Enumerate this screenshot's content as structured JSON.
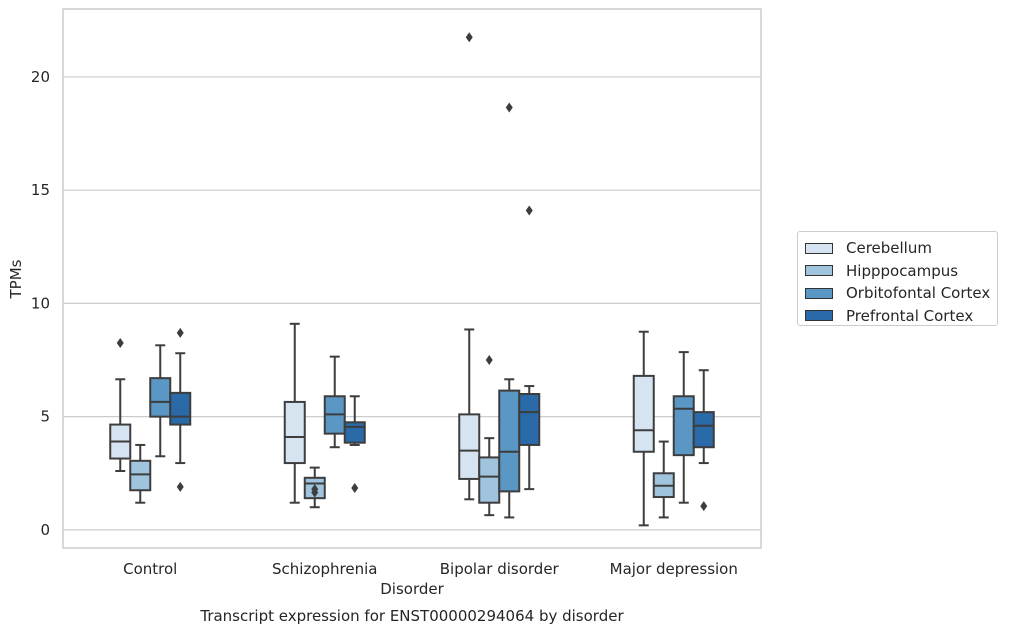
{
  "chart_data": {
    "type": "boxplot",
    "xlabel": "Disorder",
    "ylabel": "TPMs",
    "caption": "Transcript expression for ENST00000294064 by disorder",
    "categories": [
      "Control",
      "Schizophrenia",
      "Bipolar disorder",
      "Major depression"
    ],
    "ylim": [
      -0.8,
      23
    ],
    "yticks": [
      0,
      5,
      10,
      15,
      20
    ],
    "grid": "horizontal",
    "legend_position": "right",
    "series": [
      {
        "name": "Cerebellum",
        "color": "#d6e4f2",
        "boxes": [
          {
            "whislo": 2.6,
            "q1": 3.15,
            "med": 3.9,
            "q3": 4.65,
            "whishi": 6.65,
            "fliers": [
              8.25
            ]
          },
          {
            "whislo": 1.2,
            "q1": 2.95,
            "med": 4.1,
            "q3": 5.65,
            "whishi": 9.1,
            "fliers": []
          },
          {
            "whislo": 1.35,
            "q1": 2.25,
            "med": 3.5,
            "q3": 5.1,
            "whishi": 8.85,
            "fliers": [
              21.75
            ]
          },
          {
            "whislo": 0.2,
            "q1": 3.45,
            "med": 4.4,
            "q3": 6.8,
            "whishi": 8.75,
            "fliers": []
          }
        ]
      },
      {
        "name": "Hipppocampus",
        "color": "#a0c4dd",
        "boxes": [
          {
            "whislo": 1.2,
            "q1": 1.75,
            "med": 2.45,
            "q3": 3.05,
            "whishi": 3.75,
            "fliers": []
          },
          {
            "whislo": 1.0,
            "q1": 1.4,
            "med": 2.05,
            "q3": 2.3,
            "whishi": 2.75,
            "fliers": [
              1.65,
              1.8
            ]
          },
          {
            "whislo": 0.65,
            "q1": 1.2,
            "med": 2.35,
            "q3": 3.2,
            "whishi": 4.05,
            "fliers": [
              7.5
            ]
          },
          {
            "whislo": 0.55,
            "q1": 1.45,
            "med": 1.95,
            "q3": 2.5,
            "whishi": 3.9,
            "fliers": []
          }
        ]
      },
      {
        "name": "Orbitofontal Cortex",
        "color": "#5a97c4",
        "boxes": [
          {
            "whislo": 3.25,
            "q1": 5.0,
            "med": 5.65,
            "q3": 6.7,
            "whishi": 8.15,
            "fliers": []
          },
          {
            "whislo": 3.65,
            "q1": 4.25,
            "med": 5.1,
            "q3": 5.9,
            "whishi": 7.65,
            "fliers": []
          },
          {
            "whislo": 0.55,
            "q1": 1.7,
            "med": 3.45,
            "q3": 6.15,
            "whishi": 6.65,
            "fliers": [
              18.65
            ]
          },
          {
            "whislo": 1.2,
            "q1": 3.3,
            "med": 5.35,
            "q3": 5.9,
            "whishi": 7.85,
            "fliers": []
          }
        ]
      },
      {
        "name": "Prefrontal Cortex",
        "color": "#2a6aa8",
        "boxes": [
          {
            "whislo": 2.95,
            "q1": 4.65,
            "med": 5.0,
            "q3": 6.05,
            "whishi": 7.8,
            "fliers": [
              8.7,
              1.9
            ]
          },
          {
            "whislo": 3.75,
            "q1": 3.85,
            "med": 4.55,
            "q3": 4.75,
            "whishi": 5.9,
            "fliers": [
              1.85
            ]
          },
          {
            "whislo": 1.8,
            "q1": 3.75,
            "med": 5.2,
            "q3": 6.0,
            "whishi": 6.35,
            "fliers": [
              14.1
            ]
          },
          {
            "whislo": 2.95,
            "q1": 3.65,
            "med": 4.6,
            "q3": 5.2,
            "whishi": 7.05,
            "fliers": [
              1.05
            ]
          }
        ]
      }
    ]
  }
}
